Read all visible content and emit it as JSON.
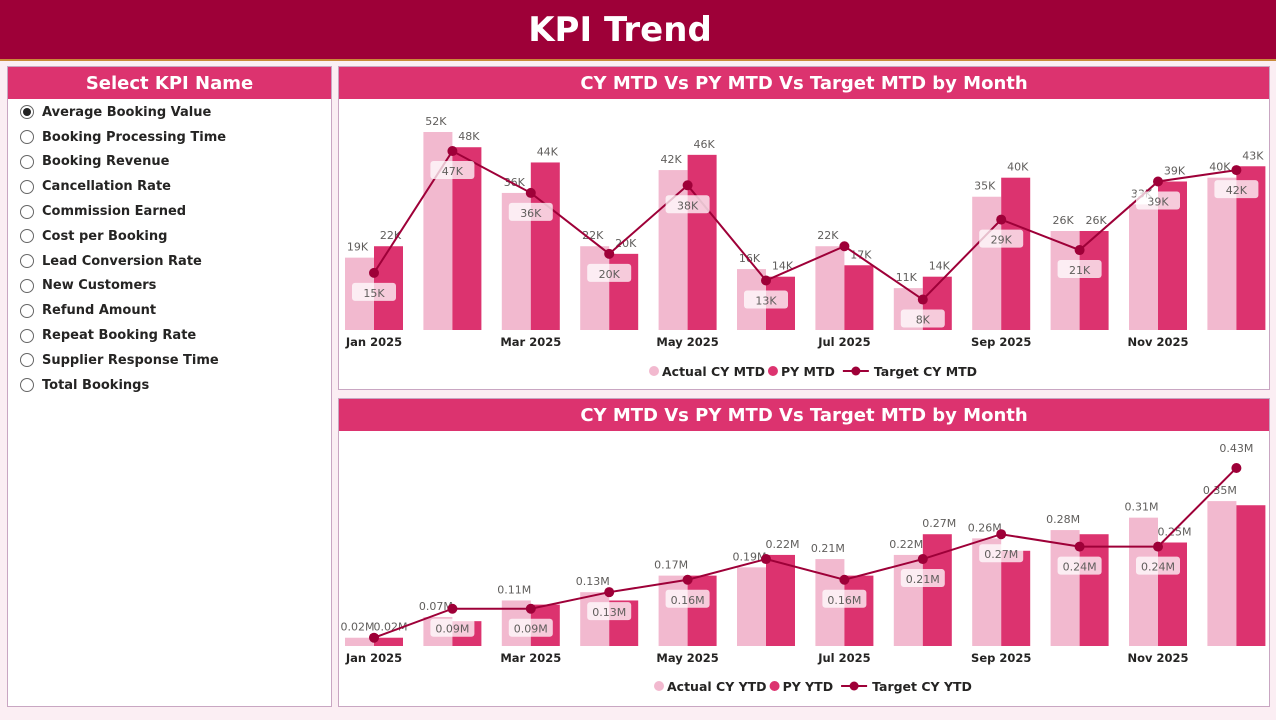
{
  "header": {
    "title": "KPI Trend"
  },
  "slicer": {
    "title": "Select KPI Name",
    "selected": "Average Booking Value",
    "items": [
      "Average Booking Value",
      "Booking Processing Time",
      "Booking Revenue",
      "Cancellation Rate",
      "Commission Earned",
      "Cost per Booking",
      "Lead Conversion Rate",
      "New Customers",
      "Refund Amount",
      "Repeat Booking Rate",
      "Supplier Response Time",
      "Total Bookings"
    ]
  },
  "colors": {
    "actual": "#f2b9cf",
    "py": "#dc336f",
    "target": "#9e0038",
    "header": "#9e0038",
    "panel_title": "#dc336f"
  },
  "chart_data": [
    {
      "type": "bar+line",
      "title": "CY MTD Vs PY MTD Vs Target MTD by Month",
      "unit": "K",
      "x_tick_labels": [
        "Jan 2025",
        "",
        "Mar 2025",
        "",
        "May 2025",
        "",
        "Jul 2025",
        "",
        "Sep 2025",
        "",
        "Nov 2025",
        ""
      ],
      "series": [
        {
          "name": "Actual CY MTD",
          "kind": "bar",
          "values": [
            19,
            52,
            36,
            22,
            42,
            16,
            22,
            11,
            35,
            26,
            33,
            40
          ],
          "labels": [
            "19K",
            "52K",
            "36K",
            "22K",
            "42K",
            "16K",
            "22K",
            "11K",
            "35K",
            "26K",
            "33K",
            "40K"
          ]
        },
        {
          "name": "PY MTD",
          "kind": "bar",
          "values": [
            22,
            48,
            44,
            20,
            46,
            14,
            17,
            14,
            40,
            26,
            39,
            43
          ],
          "labels": [
            "22K",
            "48K",
            "44K",
            "20K",
            "46K",
            "14K",
            "17K",
            "14K",
            "40K",
            "26K",
            "39K",
            "43K"
          ]
        },
        {
          "name": "Target CY MTD",
          "kind": "line",
          "values": [
            15,
            47,
            36,
            20,
            38,
            13,
            22,
            8,
            29,
            21,
            39,
            42
          ],
          "labels": [
            "15K",
            "47K",
            "36K",
            "20K",
            "38K",
            "13K",
            "",
            "8K",
            "29K",
            "21K",
            "39K",
            "42K"
          ]
        }
      ],
      "ylim": [
        0,
        55
      ],
      "grid": false,
      "legend": "bottom"
    },
    {
      "type": "bar+line",
      "title": "CY MTD Vs PY MTD Vs Target MTD by Month",
      "unit": "M",
      "x_tick_labels": [
        "Jan 2025",
        "",
        "Mar 2025",
        "",
        "May 2025",
        "",
        "Jul 2025",
        "",
        "Sep 2025",
        "",
        "Nov 2025",
        ""
      ],
      "series": [
        {
          "name": "Actual CY YTD",
          "kind": "bar",
          "values": [
            0.02,
            0.07,
            0.11,
            0.13,
            0.17,
            0.19,
            0.21,
            0.22,
            0.26,
            0.28,
            0.31,
            0.35
          ],
          "labels": [
            "0.02M",
            "0.07M",
            "0.11M",
            "0.13M",
            "0.17M",
            "0.19M",
            "0.21M",
            "0.22M",
            "0.26M",
            "0.28M",
            "0.31M",
            "0.35M"
          ]
        },
        {
          "name": "PY YTD",
          "kind": "bar",
          "values": [
            0.02,
            0.06,
            0.1,
            0.11,
            0.17,
            0.22,
            0.17,
            0.27,
            0.23,
            0.27,
            0.25,
            0.34
          ],
          "labels": [
            "0.02M",
            "",
            "",
            "",
            "",
            "0.22M",
            "",
            "0.27M",
            "",
            "",
            "0.25M",
            ""
          ]
        },
        {
          "name": "Target CY YTD",
          "kind": "line",
          "values": [
            0.02,
            0.09,
            0.09,
            0.13,
            0.16,
            0.21,
            0.16,
            0.21,
            0.27,
            0.24,
            0.24,
            0.43
          ],
          "labels": [
            "",
            "0.09M",
            "0.09M",
            "0.13M",
            "0.16M",
            "",
            "0.16M",
            "0.21M",
            "0.27M",
            "0.24M",
            "0.24M",
            "0.43M"
          ]
        }
      ],
      "ylim": [
        0,
        0.45
      ],
      "grid": false,
      "legend": "bottom"
    }
  ]
}
